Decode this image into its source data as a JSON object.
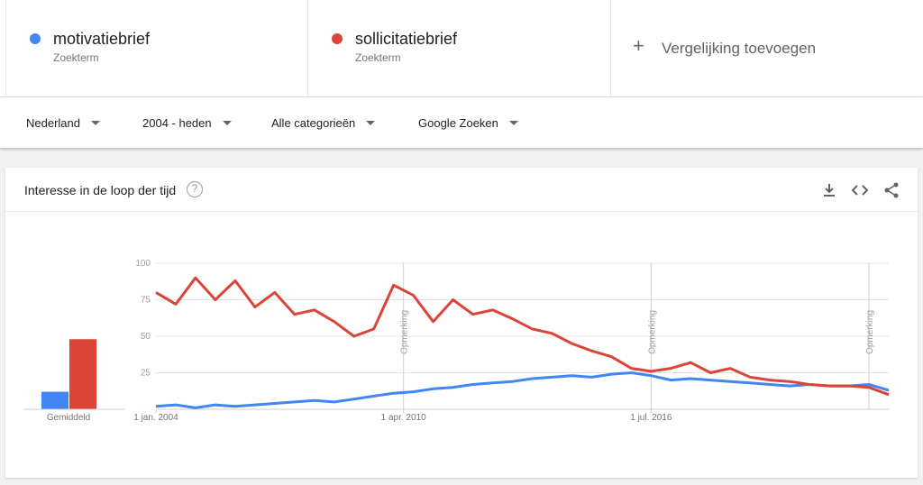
{
  "terms": [
    {
      "name": "motivatiebrief",
      "kind": "Zoekterm",
      "color": "#4285f4"
    },
    {
      "name": "sollicitatiebrief",
      "kind": "Zoekterm",
      "color": "#db4437"
    }
  ],
  "add_comparison": {
    "icon": "plus-icon",
    "label": "Vergelijking toevoegen"
  },
  "filters": {
    "region": "Nederland",
    "period": "2004 - heden",
    "category": "Alle categorieën",
    "source": "Google Zoeken"
  },
  "card": {
    "title": "Interesse in de loop der tijd",
    "help_glyph": "?",
    "icons": [
      "download-icon",
      "embed-icon",
      "share-icon"
    ]
  },
  "chart_data": {
    "type": "line",
    "title": "",
    "xlabel": "",
    "ylabel": "",
    "ylim": [
      0,
      100
    ],
    "yticks": [
      25,
      50,
      75,
      100
    ],
    "xlim": [
      "2004-01",
      "2022-07"
    ],
    "xticks": [
      {
        "x": "2004-01",
        "label": "1 jan. 2004"
      },
      {
        "x": "2010-04",
        "label": "1 apr. 2010"
      },
      {
        "x": "2016-07",
        "label": "1 jul. 2016"
      }
    ],
    "grid": true,
    "annotations": [
      {
        "x": "2010-04",
        "label": "Opmerking"
      },
      {
        "x": "2016-07",
        "label": "Opmerking"
      },
      {
        "x": "2022-01",
        "label": "Opmerking"
      }
    ],
    "average": {
      "label": "Gemiddeld",
      "values": [
        {
          "series": "motivatiebrief",
          "value": 12
        },
        {
          "series": "sollicitatiebrief",
          "value": 48
        }
      ]
    },
    "x": [
      "2004-01",
      "2004-07",
      "2005-01",
      "2005-07",
      "2006-01",
      "2006-07",
      "2007-01",
      "2007-07",
      "2008-01",
      "2008-07",
      "2009-01",
      "2009-07",
      "2010-01",
      "2010-07",
      "2011-01",
      "2011-07",
      "2012-01",
      "2012-07",
      "2013-01",
      "2013-07",
      "2014-01",
      "2014-07",
      "2015-01",
      "2015-07",
      "2016-01",
      "2016-07",
      "2017-01",
      "2017-07",
      "2018-01",
      "2018-07",
      "2019-01",
      "2019-07",
      "2020-01",
      "2020-07",
      "2021-01",
      "2021-07",
      "2022-01",
      "2022-07"
    ],
    "series": [
      {
        "name": "motivatiebrief",
        "color": "#4285f4",
        "values": [
          2,
          3,
          1,
          3,
          2,
          3,
          4,
          5,
          6,
          5,
          7,
          9,
          11,
          12,
          14,
          15,
          17,
          18,
          19,
          21,
          22,
          23,
          22,
          24,
          25,
          23,
          20,
          21,
          20,
          19,
          18,
          17,
          16,
          17,
          16,
          16,
          17,
          13
        ]
      },
      {
        "name": "sollicitatiebrief",
        "color": "#db4437",
        "values": [
          80,
          72,
          90,
          75,
          88,
          70,
          80,
          65,
          68,
          60,
          50,
          55,
          85,
          78,
          60,
          75,
          65,
          68,
          62,
          55,
          52,
          45,
          40,
          36,
          28,
          26,
          28,
          32,
          25,
          28,
          22,
          20,
          19,
          17,
          16,
          16,
          15,
          10
        ]
      }
    ]
  }
}
